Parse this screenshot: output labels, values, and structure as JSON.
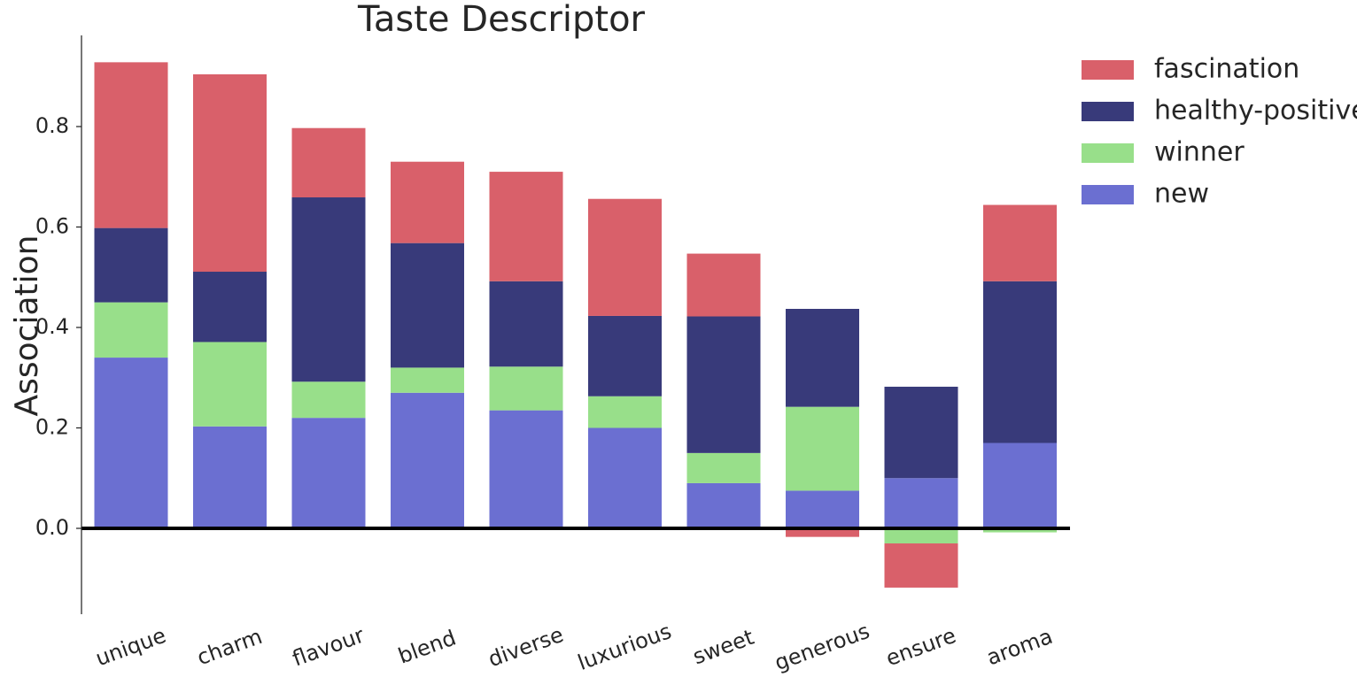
{
  "chart_data": {
    "type": "bar",
    "stacked": true,
    "title": "Taste Descriptor",
    "xlabel": "",
    "ylabel": "Association",
    "ylim": [
      -0.17,
      0.98
    ],
    "yticks": [
      0.0,
      0.2,
      0.4,
      0.6,
      0.8
    ],
    "ytick_labels": [
      "0.0",
      "0.2",
      "0.4",
      "0.6",
      "0.8"
    ],
    "grid": false,
    "legend_position": "top-right, outside plot",
    "categories": [
      "unique",
      "charm",
      "flavour",
      "blend",
      "diverse",
      "luxurious",
      "sweet",
      "generous",
      "ensure",
      "aroma"
    ],
    "series": [
      {
        "name": "new",
        "color": "#6b6fd1",
        "values": [
          0.34,
          0.203,
          0.22,
          0.27,
          0.235,
          0.2,
          0.09,
          0.075,
          0.1,
          0.17
        ]
      },
      {
        "name": "winner",
        "color": "#98df8a",
        "values": [
          0.11,
          0.168,
          0.072,
          0.05,
          0.087,
          0.063,
          0.06,
          0.167,
          -0.03,
          -0.008
        ]
      },
      {
        "name": "healthy-positive",
        "color": "#383a7a",
        "values": [
          0.148,
          0.14,
          0.367,
          0.248,
          0.17,
          0.16,
          0.272,
          0.195,
          0.182,
          0.322
        ]
      },
      {
        "name": "fascination",
        "color": "#d9606a",
        "values": [
          0.33,
          0.393,
          0.138,
          0.162,
          0.218,
          0.233,
          0.125,
          -0.017,
          -0.088,
          0.152
        ]
      }
    ],
    "legend_order": [
      "fascination",
      "healthy-positive",
      "winner",
      "new"
    ]
  }
}
